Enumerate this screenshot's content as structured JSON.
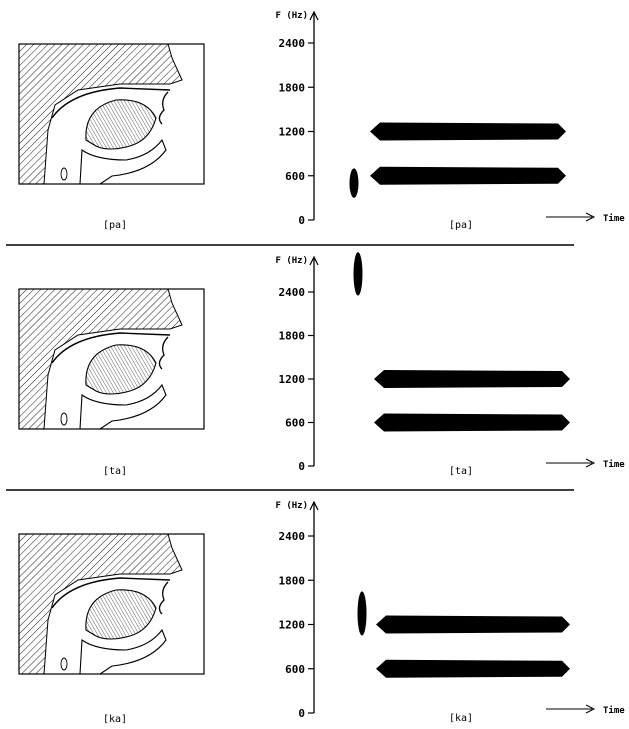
{
  "panels": [
    {
      "caption": "[pa]",
      "spectrogram_label": "[pa]",
      "burst": {
        "center_hz": 500,
        "low_hz": 300,
        "high_hz": 700
      },
      "formants_hz": [
        1200,
        600
      ]
    },
    {
      "caption": "[ta]",
      "spectrogram_label": "[ta]",
      "burst": {
        "center_hz": 2600,
        "low_hz": 2350,
        "high_hz": 2950
      },
      "formants_hz": [
        1200,
        600
      ]
    },
    {
      "caption": "[ka]",
      "spectrogram_label": "[ka]",
      "burst": {
        "center_hz": 1350,
        "low_hz": 1050,
        "high_hz": 1650
      },
      "formants_hz": [
        1200,
        600
      ]
    }
  ],
  "axis": {
    "y_title": "F (Hz)",
    "x_title": "Time",
    "ticks": [
      0,
      600,
      1200,
      1800,
      2400
    ],
    "ylim": [
      0,
      2400
    ]
  },
  "colors": {
    "ink": "#000000",
    "background": "#ffffff"
  }
}
